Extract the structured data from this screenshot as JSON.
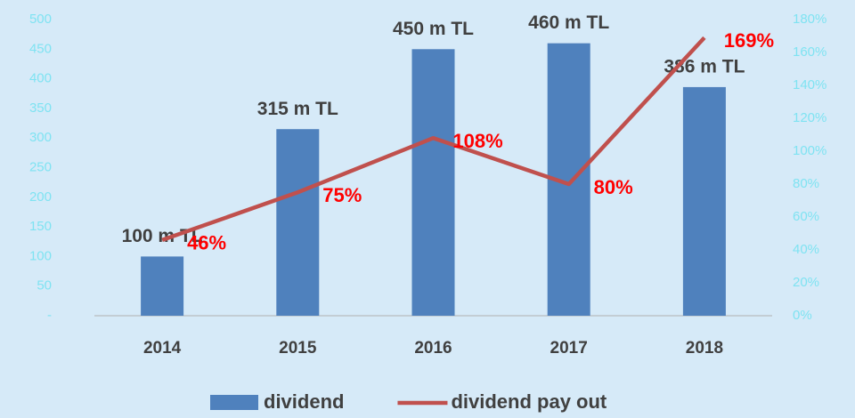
{
  "chart_data": {
    "type": "bar_line",
    "categories": [
      "2014",
      "2015",
      "2016",
      "2017",
      "2018"
    ],
    "series": [
      {
        "name": "dividend",
        "type": "bar",
        "color": "#4f81bd",
        "axis": "y",
        "values": [
          100,
          315,
          450,
          460,
          386
        ],
        "value_labels": [
          "100 m TL",
          "315 m TL",
          "450 m TL",
          "460 m TL",
          "386 m TL"
        ]
      },
      {
        "name": "dividend pay out",
        "type": "line",
        "color": "#c0504d",
        "axis": "y2",
        "values": [
          46,
          75,
          108,
          80,
          169
        ],
        "value_labels": [
          "46%",
          "75%",
          "108%",
          "80%",
          "169%"
        ]
      }
    ],
    "ylim": [
      0,
      500
    ],
    "yticks": [
      {
        "value": 0,
        "label": "-"
      },
      50,
      100,
      150,
      200,
      250,
      300,
      350,
      400,
      450,
      500
    ],
    "y2lim": [
      0,
      180
    ],
    "y2ticks": [
      {
        "value": 0,
        "label": "0%"
      },
      {
        "value": 20,
        "label": "20%"
      },
      {
        "value": 40,
        "label": "40%"
      },
      {
        "value": 60,
        "label": "60%"
      },
      {
        "value": 80,
        "label": "80%"
      },
      {
        "value": 100,
        "label": "100%"
      },
      {
        "value": 120,
        "label": "120%"
      },
      {
        "value": 140,
        "label": "140%"
      },
      {
        "value": 160,
        "label": "160%"
      },
      {
        "value": 180,
        "label": "180%"
      }
    ],
    "legend": "bottom"
  }
}
